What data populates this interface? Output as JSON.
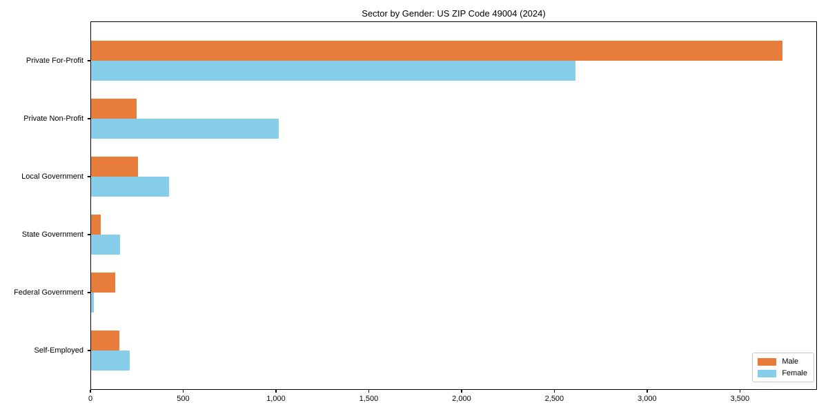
{
  "figure": {
    "title": "Sector by Gender: US ZIP Code 49004 (2024)"
  },
  "chart_data": {
    "type": "bar",
    "orientation": "horizontal",
    "title": "Sector by Gender: US ZIP Code 49004 (2024)",
    "xlabel": "",
    "ylabel": "",
    "categories": [
      "Private For-Profit",
      "Private Non-Profit",
      "Local Government",
      "State Government",
      "Federal Government",
      "Self-Employed"
    ],
    "series": [
      {
        "name": "Male",
        "color": "#E87C3A",
        "values": [
          3730,
          250,
          255,
          55,
          135,
          155
        ]
      },
      {
        "name": "Female",
        "color": "#87CEEB",
        "values": [
          2615,
          1015,
          425,
          160,
          20,
          210
        ]
      }
    ],
    "xlim": [
      0,
      3915
    ],
    "xticks": [
      0,
      500,
      1000,
      1500,
      2000,
      2500,
      3000,
      3500
    ],
    "xtick_labels": [
      "0",
      "500",
      "1,000",
      "1,500",
      "2,000",
      "2,500",
      "3,000",
      "3,500"
    ],
    "legend": {
      "position": "lower-right",
      "entries": [
        "Male",
        "Female"
      ]
    },
    "grid": false,
    "plot_background": "#FFFFFF",
    "axis_color": "#000000"
  }
}
